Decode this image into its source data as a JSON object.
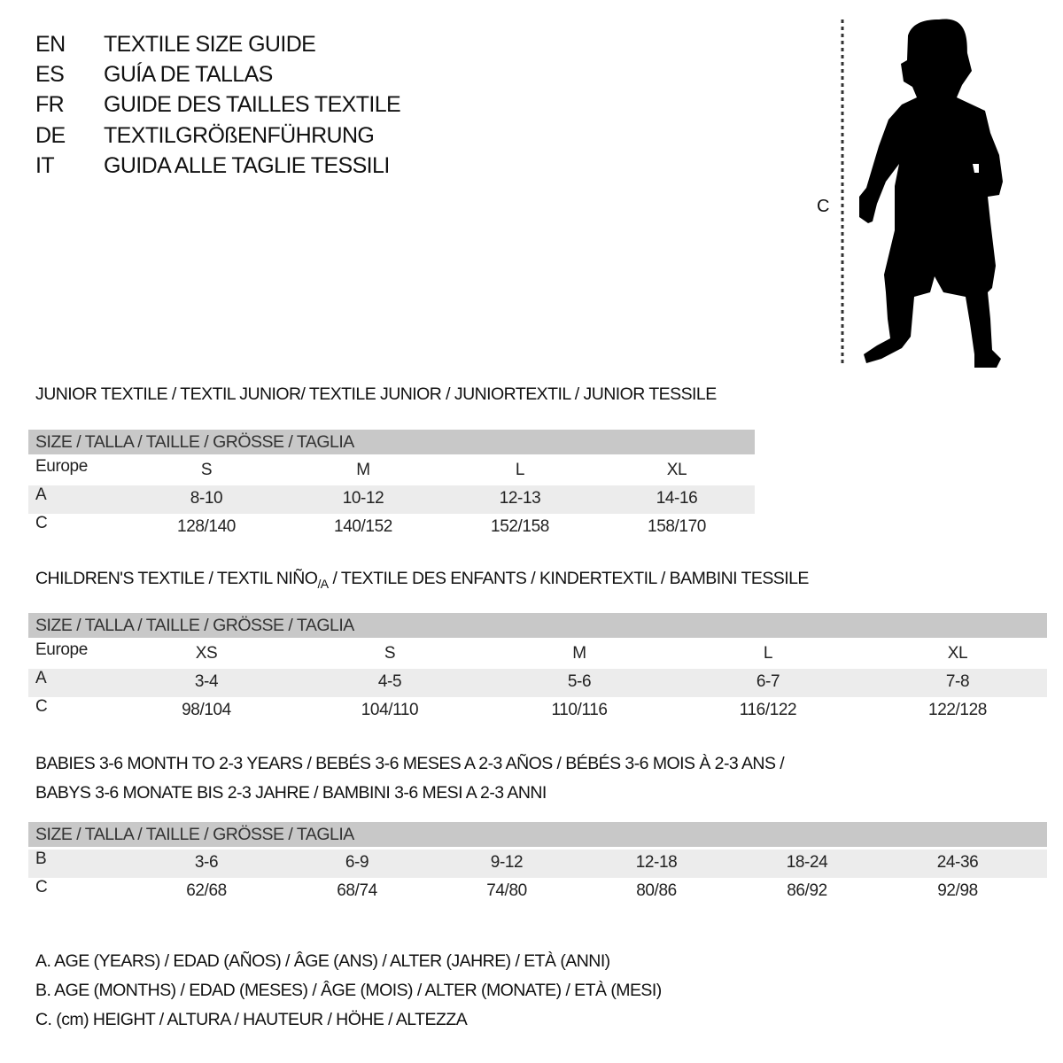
{
  "languages": [
    {
      "code": "EN",
      "title": "TEXTILE SIZE GUIDE"
    },
    {
      "code": "ES",
      "title": "GUÍA DE TALLAS"
    },
    {
      "code": "FR",
      "title": "GUIDE DES TAILLES TEXTILE"
    },
    {
      "code": "DE",
      "title": "TEXTILGRÖßENFÜHRUNG"
    },
    {
      "code": "IT",
      "title": "GUIDA ALLE TAGLIE TESSILI"
    }
  ],
  "figure": {
    "label": "C",
    "icon": "child-silhouette-icon"
  },
  "colors": {
    "header_bg": "#c8c8c8",
    "row_shade": "#ececec"
  },
  "sections": [
    {
      "title": "JUNIOR TEXTILE / TEXTIL JUNIOR/ TEXTILE JUNIOR / JUNIORTEXTIL / JUNIOR TESSILE",
      "header": "SIZE / TALLA / TAILLE / GRÖSSE / TAGLIA",
      "rows": [
        {
          "label": "Europe",
          "values": [
            "S",
            "M",
            "L",
            "XL"
          ]
        },
        {
          "label": "A",
          "values": [
            "8-10",
            "10-12",
            "12-13",
            "14-16"
          ]
        },
        {
          "label": "C",
          "values": [
            "128/140",
            "140/152",
            "152/158",
            "158/170"
          ]
        }
      ]
    },
    {
      "title_main": "CHILDREN'S TEXTILE / TEXTIL NIÑO",
      "title_sub": "/A",
      "title_rest": " / TEXTILE DES ENFANTS / KINDERTEXTIL / BAMBINI TESSILE",
      "header": "SIZE / TALLA / TAILLE / GRÖSSE / TAGLIA",
      "rows": [
        {
          "label": "Europe",
          "values": [
            "XS",
            "S",
            "M",
            "L",
            "XL"
          ]
        },
        {
          "label": "A",
          "values": [
            "3-4",
            "4-5",
            "5-6",
            "6-7",
            "7-8"
          ]
        },
        {
          "label": "C",
          "values": [
            "98/104",
            "104/110",
            "110/116",
            "116/122",
            "122/128"
          ]
        }
      ]
    },
    {
      "title_line1": "BABIES 3-6 MONTH TO 2-3 YEARS / BEBÉS 3-6 MESES A 2-3 AÑOS / BÉBÉS 3-6 MOIS À 2-3 ANS /",
      "title_line2": "BABYS 3-6 MONATE BIS 2-3 JAHRE / BAMBINI 3-6 MESI A 2-3 ANNI",
      "header": "SIZE / TALLA / TAILLE / GRÖSSE / TAGLIA",
      "rows": [
        {
          "label": "B",
          "values": [
            "3-6",
            "6-9",
            "9-12",
            "12-18",
            "18-24",
            "24-36"
          ]
        },
        {
          "label": "C",
          "values": [
            "62/68",
            "68/74",
            "74/80",
            "80/86",
            "86/92",
            "92/98"
          ]
        }
      ]
    }
  ],
  "legend": [
    "A. AGE (YEARS) / EDAD (AÑOS) / ÂGE (ANS) / ALTER (JAHRE) / ETÀ (ANNI)",
    "B. AGE (MONTHS) / EDAD (MESES) / ÂGE (MOIS) / ALTER (MONATE) / ETÀ (MESI)",
    "C. (cm) HEIGHT / ALTURA / HAUTEUR / HÖHE / ALTEZZA"
  ]
}
